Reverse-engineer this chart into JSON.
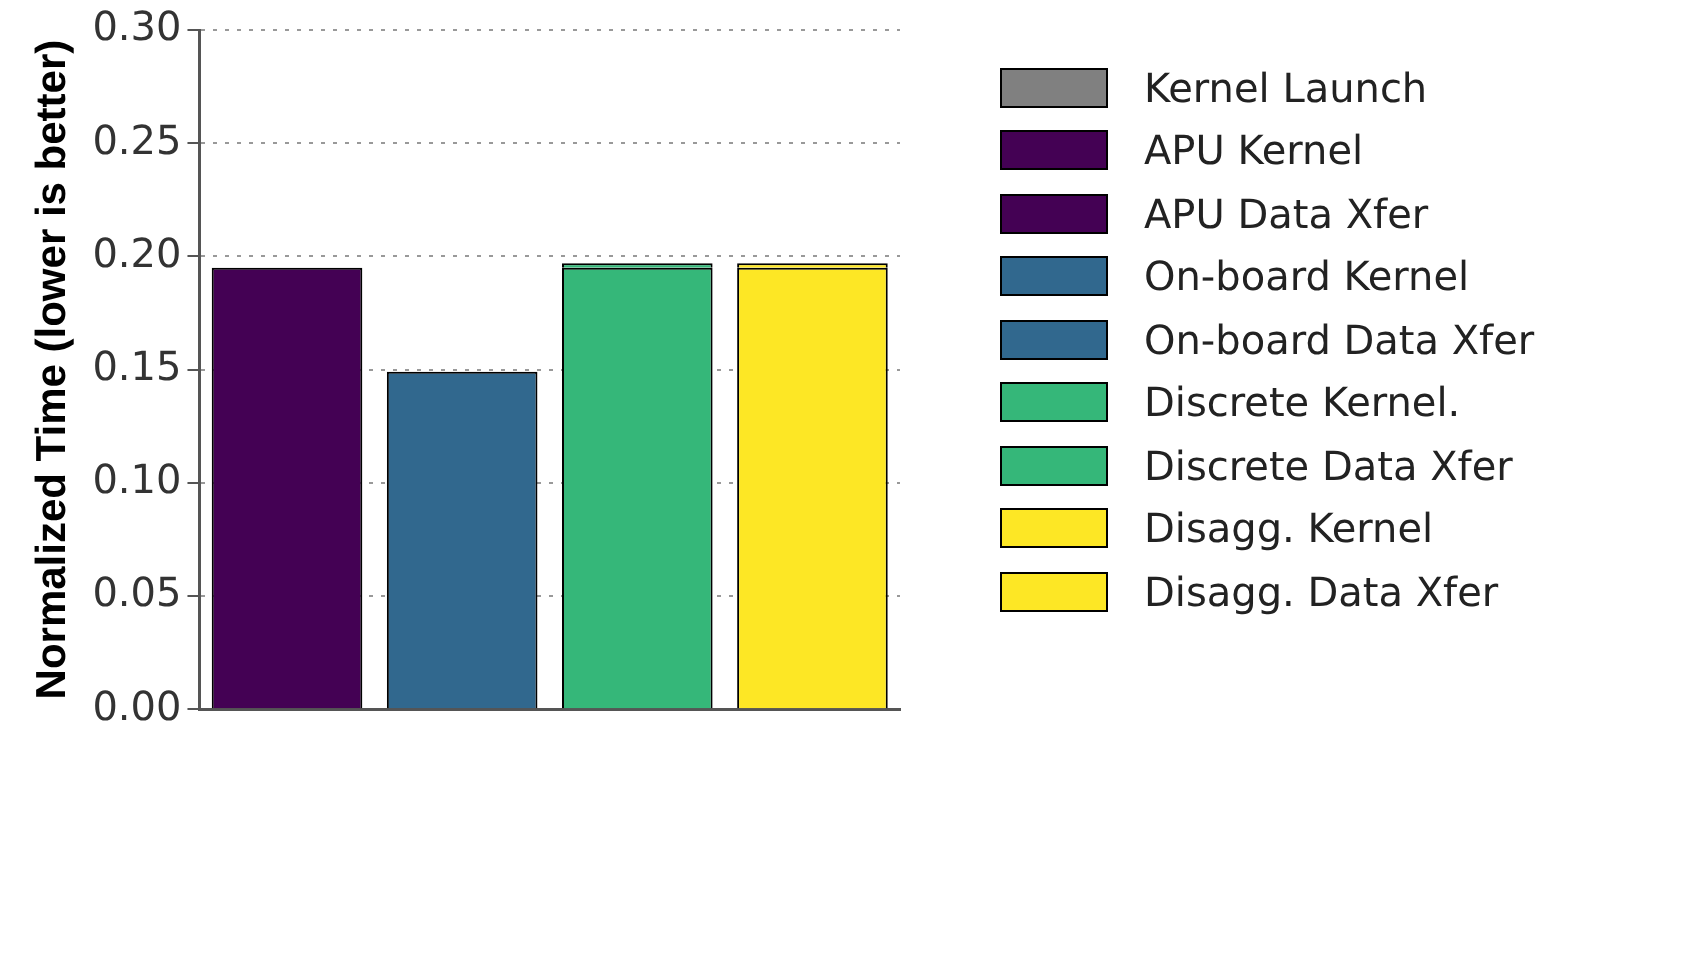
{
  "chart_data": {
    "type": "bar",
    "ylabel": "Normalized Time (lower is better)",
    "categories": [
      null,
      null,
      null,
      null
    ],
    "stacked": true,
    "ylim": [
      0,
      0.3
    ],
    "yticks": [
      {
        "value": 0,
        "label": "0.00"
      },
      {
        "value": 0.05,
        "label": "0.05"
      },
      {
        "value": 0.1,
        "label": "0.10"
      },
      {
        "value": 0.15,
        "label": "0.15"
      },
      {
        "value": 0.2,
        "label": "0.20"
      },
      {
        "value": 0.25,
        "label": "0.25"
      },
      {
        "value": 0.3,
        "label": "0.30"
      }
    ],
    "grid": "y",
    "legend": "right",
    "series": [
      {
        "name": "Kernel Launch",
        "color": "#808080",
        "values": [
          null,
          null,
          null,
          null
        ]
      },
      {
        "name": "APU Kernel",
        "color": "#440154",
        "values": [
          0.195,
          null,
          null,
          null
        ]
      },
      {
        "name": "APU Data Xfer",
        "color": "#440154",
        "values": [
          null,
          null,
          null,
          null
        ]
      },
      {
        "name": "On-board Kernel",
        "color": "#31688e",
        "values": [
          null,
          0.149,
          null,
          null
        ]
      },
      {
        "name": "On-board Data Xfer",
        "color": "#31688e",
        "values": [
          null,
          null,
          null,
          null
        ]
      },
      {
        "name": "Discrete Kernel.",
        "color": "#35b779",
        "values": [
          null,
          null,
          0.195,
          null
        ]
      },
      {
        "name": "Discrete Data Xfer",
        "color": "#35b779",
        "values": [
          null,
          null,
          0.002,
          null
        ]
      },
      {
        "name": "Disagg. Kernel",
        "color": "#fde725",
        "values": [
          null,
          null,
          null,
          0.195
        ]
      },
      {
        "name": "Disagg. Data Xfer",
        "color": "#fde725",
        "values": [
          null,
          null,
          null,
          0.002
        ]
      }
    ]
  }
}
